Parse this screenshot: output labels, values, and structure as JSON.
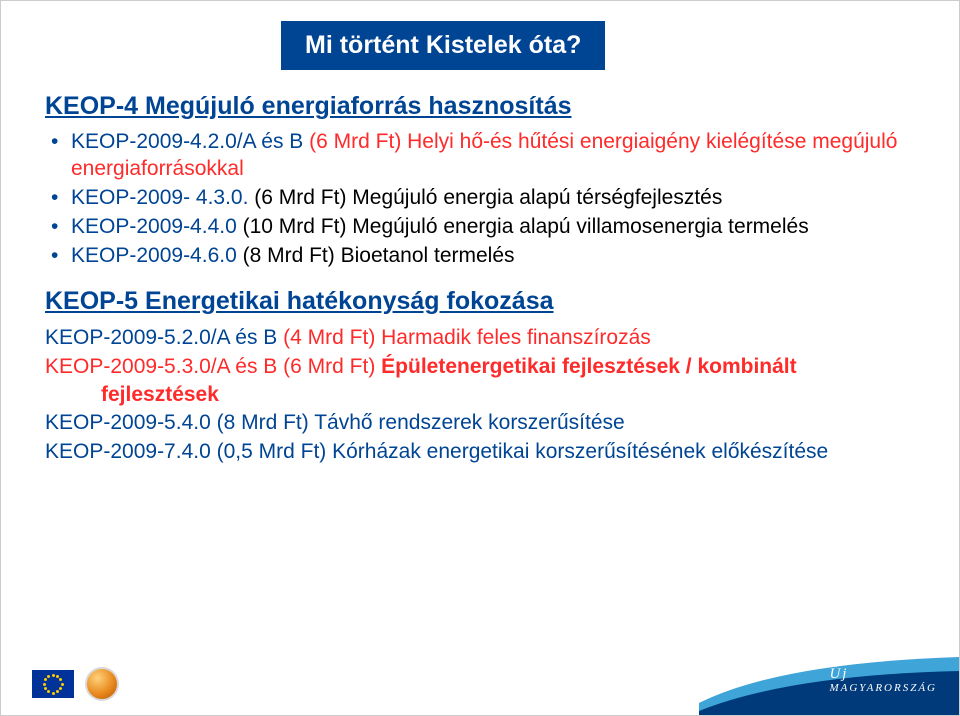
{
  "title": "Mi történt Kistelek óta?",
  "section1": {
    "heading": "KEOP-4 Megújuló energiaforrás hasznosítás",
    "items": [
      {
        "code": "KEOP-2009-4.2.0/A és B",
        "text": " (6 Mrd Ft)  Helyi hő-és hűtési energiaigény kielégítése megújuló energiaforrásokkal",
        "textClass": "sub"
      },
      {
        "code": "KEOP-2009- 4.3.0.",
        "text": " (6 Mrd Ft) Megújuló energia alapú térségfejlesztés",
        "textClass": "sub-black"
      },
      {
        "code": "KEOP-2009-4.4.0",
        "text": "  (10 Mrd Ft) Megújuló energia alapú villamosenergia termelés",
        "textClass": "sub-black"
      },
      {
        "code": "KEOP-2009-4.6.0",
        "text": " (8 Mrd Ft) Bioetanol termelés",
        "textClass": "sub-black"
      }
    ]
  },
  "section2": {
    "heading": "KEOP-5 Energetikai hatékonyság fokozása",
    "rows": [
      {
        "code": "KEOP-2009-5.2.0/A és B",
        "codeColor": "#004494",
        "text": " (4 Mrd Ft) Harmadik feles finanszírozás",
        "textColor": "#ff2a2a",
        "bold": false,
        "indent": 0
      },
      {
        "code": "KEOP-2009-5.3.0/A és B",
        "codeColor": "#ff2a2a",
        "text": " (6 Mrd Ft) ",
        "textColor": "#ff2a2a",
        "tail": "Épületenergetikai fejlesztések / kombinált fejlesztések",
        "tailColor": "#ff2a2a",
        "bold": true,
        "indent": 0
      },
      {
        "code": "KEOP-2009-5.4.0",
        "codeColor": "#004494",
        "text": " (8 Mrd Ft) Távhő rendszerek korszerűsítése",
        "textColor": "#004494",
        "bold": false,
        "indent": 0
      },
      {
        "code": "KEOP-2009-7.4.0",
        "codeColor": "#004494",
        "text": " (0,5 Mrd Ft) Kórházak energetikai korszerűsítésének előkészítése",
        "textColor": "#004494",
        "bold": false,
        "indent": 0
      }
    ]
  },
  "footer": {
    "brand_line1": "Új",
    "brand_line2": "MAGYARORSZÁG",
    "swoosh_color_top": "#3fa4d8",
    "swoosh_color_bottom": "#003a7a"
  }
}
